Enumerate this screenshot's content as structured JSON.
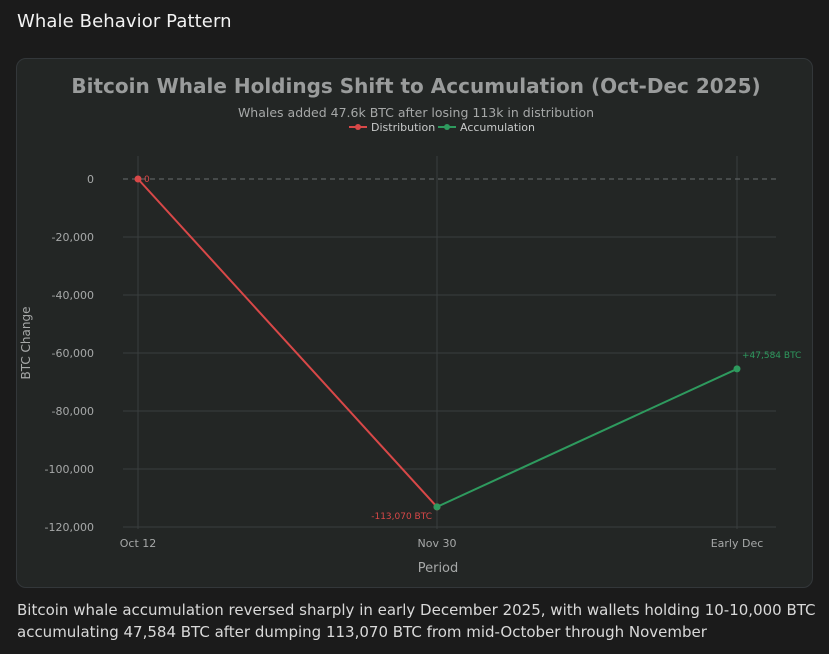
{
  "page": {
    "title": "Whale Behavior Pattern",
    "caption": "Bitcoin whale accumulation reversed sharply in early December 2025, with wallets holding 10-10,000 BTC accumulating 47,584 BTC after dumping 113,070 BTC from mid-October through November"
  },
  "chart_data": {
    "type": "line",
    "title": "Bitcoin Whale Holdings Shift to Accumulation (Oct-Dec 2025)",
    "subtitle": "Whales added 47.6k BTC after losing 113k in distribution",
    "xlabel": "Period",
    "ylabel": "BTC Change",
    "categories": [
      "Oct 12",
      "Nov 30",
      "Early Dec"
    ],
    "ylim": [
      -120000,
      0
    ],
    "yticks": [
      0,
      -20000,
      -40000,
      -60000,
      -80000,
      -100000,
      -120000
    ],
    "ytick_labels": [
      "0",
      "-20,000",
      "-40,000",
      "-60,000",
      "-80,000",
      "-100,000",
      "-120,000"
    ],
    "grid": true,
    "zero_line": "dashed",
    "legend_position": "top-center",
    "series": [
      {
        "name": "Distribution",
        "color": "#d84848",
        "points": [
          {
            "x": "Oct 12",
            "y": 0
          },
          {
            "x": "Nov 30",
            "y": -113070
          }
        ]
      },
      {
        "name": "Accumulation",
        "color": "#2e9a5e",
        "points": [
          {
            "x": "Nov 30",
            "y": -113070
          },
          {
            "x": "Early Dec",
            "y": -65486
          }
        ]
      }
    ],
    "annotations": [
      {
        "text": "0",
        "x": "Oct 12",
        "y": 0,
        "color": "#d84848"
      },
      {
        "text": "-113,070 BTC",
        "x": "Nov 30",
        "y": -113070,
        "color": "#d84848"
      },
      {
        "text": "+47,584 BTC",
        "x": "Early Dec",
        "y": -65486,
        "color": "#2e9a5e"
      }
    ]
  }
}
